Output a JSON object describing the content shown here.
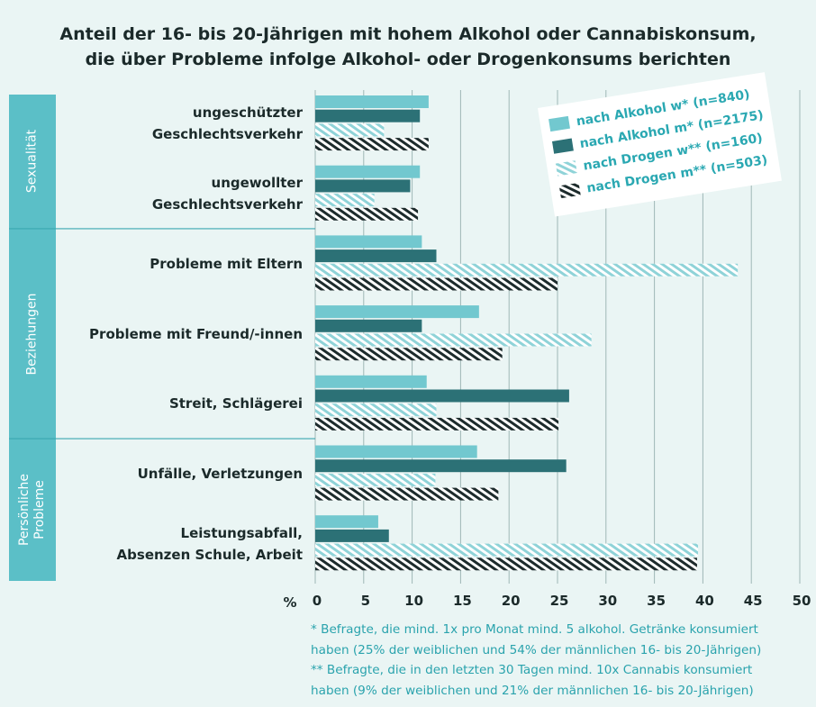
{
  "chart_data": {
    "type": "bar",
    "orientation": "horizontal",
    "title": "Anteil der 16- bis 20-Jährigen mit hohem Alkohol oder Cannabiskonsum,\ndie über Probleme infolge Alkohol- oder Drogenkonsums berichten",
    "categories": [
      "ungeschützter\nGeschlechtsverkehr",
      "ungewollter\nGeschlechtsverkehr",
      "Probleme mit Eltern",
      "Probleme mit Freund/-innen",
      "Streit, Schlägerei",
      "Unfälle, Verletzungen",
      "Leistungsabfall,\nAbsenzen Schule, Arbeit"
    ],
    "category_groups": [
      "Sexualität",
      "Sexualität",
      "Beziehungen",
      "Beziehungen",
      "Beziehungen",
      "Persönliche\nProbleme",
      "Persönliche\nProbleme"
    ],
    "series": [
      {
        "name": "nach Alkohol w* (n=840)",
        "color": "#72c8cf",
        "pattern": "solid",
        "values": [
          11.7,
          10.8,
          11.0,
          16.9,
          11.5,
          16.7,
          6.5
        ]
      },
      {
        "name": "nach Alkohol m* (n=2175)",
        "color": "#2c7176",
        "pattern": "solid",
        "values": [
          10.8,
          9.8,
          12.5,
          11.0,
          26.2,
          25.9,
          7.6
        ]
      },
      {
        "name": "nach Drogen w** (n=160)",
        "color": "#8fd3d8",
        "pattern": "hatched",
        "values": [
          7.1,
          6.1,
          43.6,
          28.5,
          12.5,
          12.4,
          39.5
        ]
      },
      {
        "name": "nach Drogen m** (n=503)",
        "color": "#1d2b2c",
        "pattern": "hatched",
        "values": [
          11.7,
          10.6,
          25.0,
          19.3,
          25.1,
          18.9,
          39.4
        ]
      }
    ],
    "xlabel": "%",
    "xlim": [
      0,
      50
    ],
    "xticks": [
      0,
      5,
      10,
      15,
      20,
      25,
      30,
      35,
      40,
      45,
      50
    ],
    "grid": true,
    "footnotes": [
      "* Befragte, die mind. 1x pro Monat mind. 5 alkohol. Getränke konsumiert\nhaben (25% der weiblichen und 54% der männlichen 16- bis 20-Jährigen)",
      "** Befragte, die in den letzten 30 Tagen mind. 10x Cannabis konsumiert\nhaben (9% der weiblichen und 21% der männlichen 16- bis 20-Jährigen)"
    ]
  }
}
